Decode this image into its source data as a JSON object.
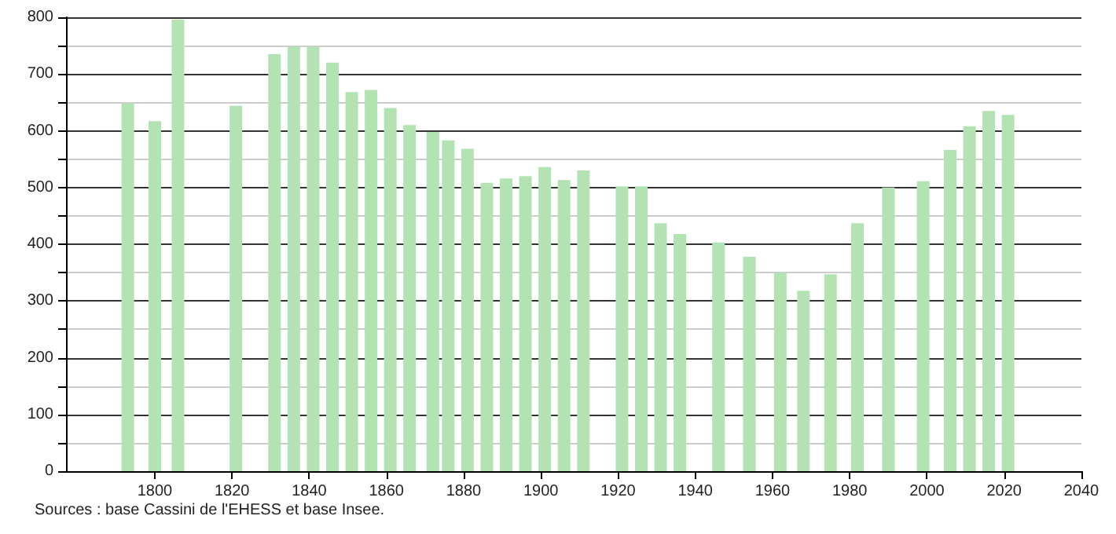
{
  "chart_data": {
    "type": "bar",
    "x": [
      1793,
      1800,
      1806,
      1821,
      1831,
      1836,
      1841,
      1846,
      1851,
      1856,
      1861,
      1866,
      1872,
      1876,
      1881,
      1886,
      1891,
      1896,
      1901,
      1906,
      1911,
      1921,
      1926,
      1931,
      1936,
      1946,
      1954,
      1962,
      1968,
      1975,
      1982,
      1990,
      1999,
      2006,
      2011,
      2016,
      2021
    ],
    "values": [
      648,
      617,
      796,
      644,
      735,
      748,
      748,
      720,
      668,
      672,
      640,
      610,
      598,
      583,
      568,
      508,
      516,
      520,
      536,
      513,
      530,
      502,
      502,
      437,
      418,
      403,
      378,
      350,
      318,
      347,
      437,
      500,
      511,
      566,
      608,
      635,
      628
    ],
    "color": "#b3e3b3",
    "xlim": [
      1777,
      2040
    ],
    "xticks": [
      1800,
      1820,
      1840,
      1860,
      1880,
      1900,
      1920,
      1940,
      1960,
      1980,
      2000,
      2020,
      2040
    ],
    "ylim": [
      0,
      800
    ],
    "yticks": [
      0,
      {
        "value": 50,
        "label": null
      },
      100,
      {
        "value": 150,
        "label": null
      },
      200,
      {
        "value": 250,
        "label": null
      },
      300,
      {
        "value": 350,
        "label": null
      },
      400,
      {
        "value": 450,
        "label": null
      },
      500,
      {
        "value": 550,
        "label": null
      },
      600,
      {
        "value": 650,
        "label": null
      },
      700,
      {
        "value": 750,
        "label": null
      },
      800
    ],
    "grid": "y",
    "annotations": [
      "Sources : base Cassini de l'EHESS et base Insee."
    ]
  }
}
